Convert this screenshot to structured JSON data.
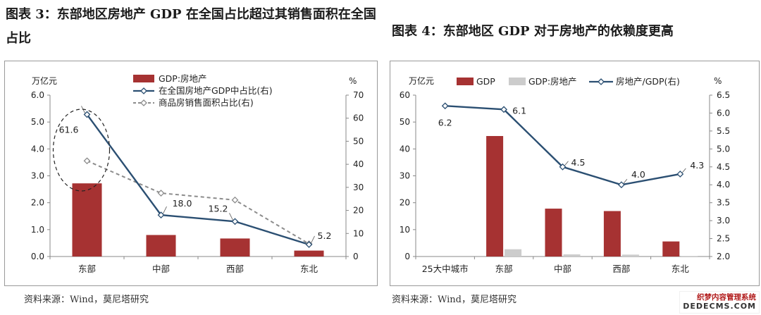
{
  "titles": {
    "left": "图表 3：东部地区房地产 GDP 在全国占比超过其销售面积在全国占比",
    "right": "图表 4：东部地区 GDP 对于房地产的依赖度更高"
  },
  "sources": {
    "left": "资料来源：Wind，莫尼塔研究",
    "right": "资料来源：Wind，莫尼塔研究"
  },
  "watermark": {
    "line1": "织梦内容管理系统",
    "line2": "DEDECMS.COM"
  },
  "colors": {
    "bar": "#a63232",
    "bar_light": "#cccccc",
    "line": "#2b4f72",
    "line_dashed": "#8c8c8c"
  },
  "chart_data": [
    {
      "type": "bar",
      "categories": [
        "东部",
        "中部",
        "西部",
        "东北"
      ],
      "series": [
        {
          "name": "GDP:房地产",
          "type": "bar",
          "axis": "left",
          "values": [
            2.72,
            0.8,
            0.67,
            0.22
          ]
        },
        {
          "name": "在全国房地产GDP中占比(右)",
          "type": "line",
          "axis": "right",
          "values": [
            61.6,
            18.0,
            15.2,
            5.2
          ],
          "labels": [
            "61.6",
            "18.0",
            "15.2",
            "5.2"
          ]
        },
        {
          "name": "商品房销售面积占比(右)",
          "type": "line-dashed",
          "axis": "right",
          "values": [
            41.5,
            27.5,
            24.5,
            5.5
          ]
        }
      ],
      "ylabel_left": "万亿元",
      "ylabel_right": "%",
      "ylim_left": [
        0,
        6
      ],
      "yticks_left": [
        "0.0",
        "1.0",
        "2.0",
        "3.0",
        "4.0",
        "5.0",
        "6.0"
      ],
      "ylim_right": [
        0,
        70
      ],
      "yticks_right": [
        "0",
        "10",
        "20",
        "30",
        "40",
        "50",
        "60",
        "70"
      ],
      "annotation": "dashed ellipse highlighting 东部",
      "legend": "top-center",
      "grid": false
    },
    {
      "type": "bar",
      "categories": [
        "25大中城市",
        "东部",
        "中部",
        "西部",
        "东北"
      ],
      "series": [
        {
          "name": "GDP",
          "type": "bar",
          "axis": "left",
          "values": [
            0,
            44.8,
            17.8,
            16.9,
            5.6
          ]
        },
        {
          "name": "GDP:房地产",
          "type": "bar",
          "axis": "left",
          "values": [
            0,
            2.7,
            0.8,
            0.7,
            0.2
          ]
        },
        {
          "name": "房地产/GDP(右)",
          "type": "line",
          "axis": "right",
          "values": [
            6.2,
            6.1,
            4.5,
            4.0,
            4.3
          ],
          "labels": [
            "6.2",
            "6.1",
            "4.5",
            "4.0",
            "4.3"
          ]
        }
      ],
      "ylabel_left": "万亿元",
      "ylabel_right": "%",
      "ylim_left": [
        0,
        60
      ],
      "yticks_left": [
        "0",
        "10",
        "20",
        "30",
        "40",
        "50",
        "60"
      ],
      "ylim_right": [
        2.0,
        6.5
      ],
      "yticks_right": [
        "2.0",
        "2.5",
        "3.0",
        "3.5",
        "4.0",
        "4.5",
        "5.0",
        "5.5",
        "6.0",
        "6.5"
      ],
      "legend": "top",
      "grid": false
    }
  ]
}
